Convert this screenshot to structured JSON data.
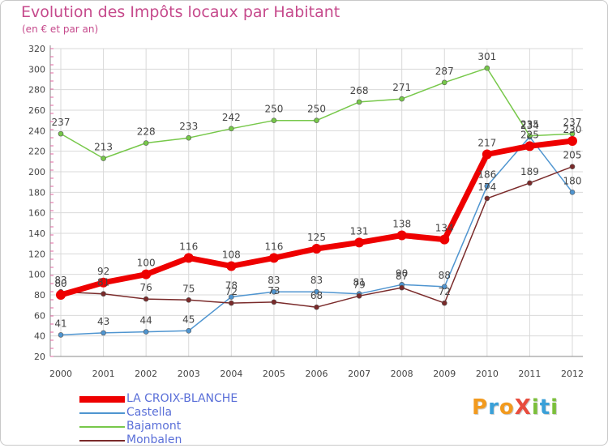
{
  "title": "Evolution des Impôts locaux par Habitant",
  "subtitle": "(en € et par an)",
  "logo": {
    "text": "ProXiti",
    "letters": [
      {
        "ch": "P",
        "color": "#f29a1e"
      },
      {
        "ch": "r",
        "color": "#3aa0d8"
      },
      {
        "ch": "o",
        "color": "#f29a1e"
      },
      {
        "ch": "X",
        "color": "#e84c3d"
      },
      {
        "ch": "i",
        "color": "#7bbf3a"
      },
      {
        "ch": "t",
        "color": "#3aa0d8"
      },
      {
        "ch": "i",
        "color": "#7bbf3a"
      }
    ]
  },
  "chart_data": {
    "type": "line",
    "x": [
      "2000",
      "2001",
      "2002",
      "2003",
      "2004",
      "2005",
      "2006",
      "2007",
      "2008",
      "2009",
      "2010",
      "2011",
      "2012"
    ],
    "ylim": [
      20,
      320
    ],
    "yticks": [
      20,
      40,
      60,
      80,
      100,
      120,
      140,
      160,
      180,
      200,
      220,
      240,
      260,
      280,
      300,
      320
    ],
    "grid": true,
    "legend_position": "bottom-left",
    "series": [
      {
        "name": "LA CROIX-BLANCHE",
        "color": "#ee0000",
        "thick": true,
        "values": [
          80,
          92,
          100,
          116,
          108,
          116,
          125,
          131,
          138,
          134,
          217,
          225,
          230
        ]
      },
      {
        "name": "Castella",
        "color": "#4f95d0",
        "thick": false,
        "values": [
          41,
          43,
          44,
          45,
          78,
          83,
          83,
          81,
          90,
          88,
          186,
          234,
          180
        ]
      },
      {
        "name": "Bajamont",
        "color": "#77c84a",
        "thick": false,
        "values": [
          237,
          213,
          228,
          233,
          242,
          250,
          250,
          268,
          271,
          287,
          301,
          235,
          237
        ]
      },
      {
        "name": "Monbalen",
        "color": "#7a2a2a",
        "thick": false,
        "values": [
          83,
          81,
          76,
          75,
          72,
          73,
          68,
          79,
          87,
          72,
          174,
          189,
          205
        ]
      }
    ]
  }
}
